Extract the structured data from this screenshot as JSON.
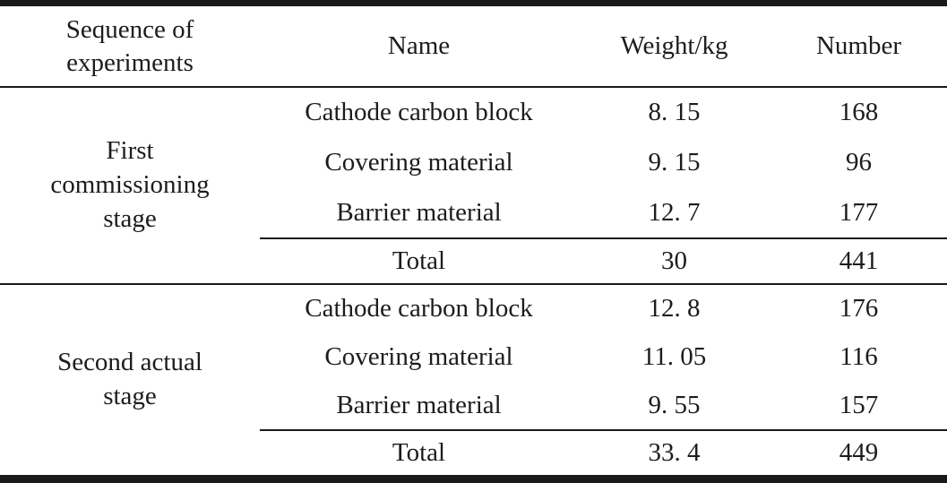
{
  "header": {
    "sequence": [
      "Sequence of",
      "experiments"
    ],
    "name": "Name",
    "weight": "Weight/kg",
    "number": "Number"
  },
  "groups": [
    {
      "stage_lines": [
        "First",
        "commissioning",
        "stage"
      ],
      "rows": [
        {
          "name": "Cathode carbon block",
          "weight": "8. 15",
          "number": "168"
        },
        {
          "name": "Covering material",
          "weight": "9. 15",
          "number": "96"
        },
        {
          "name": "Barrier material",
          "weight": "12. 7",
          "number": "177"
        }
      ],
      "total": {
        "label": "Total",
        "weight": "30",
        "number": "441"
      }
    },
    {
      "stage_lines": [
        "Second actual",
        "stage"
      ],
      "rows": [
        {
          "name": "Cathode carbon block",
          "weight": "12. 8",
          "number": "176"
        },
        {
          "name": "Covering material",
          "weight": "11. 05",
          "number": "116"
        },
        {
          "name": "Barrier material",
          "weight": "9. 55",
          "number": "157"
        }
      ],
      "total": {
        "label": "Total",
        "weight": "33. 4",
        "number": "449"
      }
    }
  ],
  "colors": {
    "rule": "#1a1a1a",
    "text": "#1c1c1c",
    "background": "#ffffff"
  }
}
